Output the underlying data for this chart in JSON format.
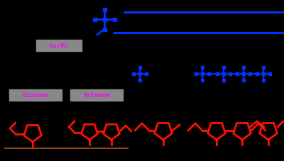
{
  "bg_color": "#000000",
  "blue": "#0033ff",
  "red": "#ff1100",
  "magenta": "#ff00ff",
  "gray_box": "#808080",
  "brown": "#8B4513",
  "fig_width": 4.0,
  "fig_height": 2.28,
  "dpi": 100,
  "label1": "hv/PC",
  "label2": "dioxane",
  "label3": "toluene"
}
